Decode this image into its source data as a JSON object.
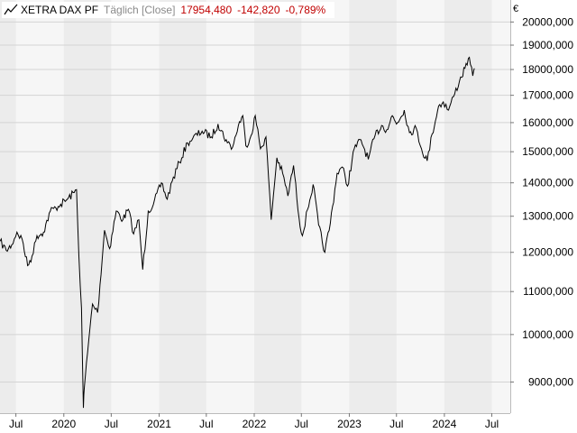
{
  "header": {
    "icon": "line-chart-icon",
    "name": "XETRA DAX PF",
    "frequency": "Täglich [Close]",
    "last": "17954,480",
    "change": "-142,820",
    "change_pct": "-0,789%",
    "negative_color": "#c00000"
  },
  "chart_data": {
    "type": "line",
    "title": "XETRA DAX PF",
    "xlabel": "",
    "ylabel": "",
    "y_unit": "€",
    "y_scale": "log",
    "ylim": [
      8400,
      21000
    ],
    "xlim": [
      "2019-05-01",
      "2024-09-10"
    ],
    "y_ticks": [
      9000,
      10000,
      11000,
      12000,
      13000,
      14000,
      15000,
      16000,
      17000,
      18000,
      19000,
      20000
    ],
    "y_tick_labels": [
      "9000,000",
      "10000,000",
      "11000,000",
      "12000,000",
      "13000,000",
      "14000,000",
      "15000,000",
      "16000,000",
      "17000,000",
      "18000,000",
      "19000,000",
      "20000,000"
    ],
    "x_ticks": [
      {
        "date": "2019-07-01",
        "label": "Jul"
      },
      {
        "date": "2020-01-01",
        "label": "2020"
      },
      {
        "date": "2020-07-01",
        "label": "Jul"
      },
      {
        "date": "2021-01-01",
        "label": "2021"
      },
      {
        "date": "2021-07-01",
        "label": "Jul"
      },
      {
        "date": "2022-01-01",
        "label": "2022"
      },
      {
        "date": "2022-07-01",
        "label": "Jul"
      },
      {
        "date": "2023-01-01",
        "label": "2023"
      },
      {
        "date": "2023-07-01",
        "label": "Jul"
      },
      {
        "date": "2024-01-01",
        "label": "2024"
      },
      {
        "date": "2024-07-01",
        "label": "Jul"
      }
    ],
    "grid": true,
    "legend": "none",
    "line_color": "#000000",
    "series": [
      {
        "values": [
          [
            "2019-05-01",
            12300
          ],
          [
            "2019-05-25",
            12050
          ],
          [
            "2019-06-15",
            12200
          ],
          [
            "2019-07-05",
            12550
          ],
          [
            "2019-07-25",
            12350
          ],
          [
            "2019-08-15",
            11650
          ],
          [
            "2019-09-01",
            11900
          ],
          [
            "2019-09-20",
            12450
          ],
          [
            "2019-10-15",
            12550
          ],
          [
            "2019-11-10",
            13150
          ],
          [
            "2019-12-01",
            13250
          ],
          [
            "2019-12-20",
            13350
          ],
          [
            "2020-01-15",
            13500
          ],
          [
            "2020-02-10",
            13700
          ],
          [
            "2020-02-19",
            13790
          ],
          [
            "2020-02-28",
            11900
          ],
          [
            "2020-03-09",
            10600
          ],
          [
            "2020-03-16",
            8500
          ],
          [
            "2020-03-20",
            8900
          ],
          [
            "2020-04-01",
            9600
          ],
          [
            "2020-04-20",
            10700
          ],
          [
            "2020-05-10",
            10500
          ],
          [
            "2020-06-05",
            12600
          ],
          [
            "2020-06-25",
            12100
          ],
          [
            "2020-07-20",
            13150
          ],
          [
            "2020-08-15",
            12900
          ],
          [
            "2020-09-05",
            13200
          ],
          [
            "2020-09-25",
            12500
          ],
          [
            "2020-10-15",
            12900
          ],
          [
            "2020-10-30",
            11550
          ],
          [
            "2020-11-20",
            13150
          ],
          [
            "2020-12-10",
            13350
          ],
          [
            "2021-01-10",
            14000
          ],
          [
            "2021-02-01",
            13500
          ],
          [
            "2021-02-20",
            14050
          ],
          [
            "2021-03-20",
            14650
          ],
          [
            "2021-04-20",
            15300
          ],
          [
            "2021-05-10",
            15450
          ],
          [
            "2021-06-15",
            15700
          ],
          [
            "2021-07-20",
            15500
          ],
          [
            "2021-08-15",
            15950
          ],
          [
            "2021-09-20",
            15300
          ],
          [
            "2021-10-10",
            15150
          ],
          [
            "2021-11-01",
            15900
          ],
          [
            "2021-11-18",
            16250
          ],
          [
            "2021-11-30",
            15200
          ],
          [
            "2021-12-20",
            15550
          ],
          [
            "2022-01-05",
            16250
          ],
          [
            "2022-01-25",
            15100
          ],
          [
            "2022-02-15",
            15500
          ],
          [
            "2022-03-07",
            12900
          ],
          [
            "2022-03-29",
            14800
          ],
          [
            "2022-04-20",
            14300
          ],
          [
            "2022-05-10",
            13600
          ],
          [
            "2022-06-01",
            14550
          ],
          [
            "2022-06-22",
            12950
          ],
          [
            "2022-07-05",
            12450
          ],
          [
            "2022-07-25",
            13200
          ],
          [
            "2022-08-15",
            13950
          ],
          [
            "2022-09-05",
            12750
          ],
          [
            "2022-09-29",
            12000
          ],
          [
            "2022-10-20",
            12800
          ],
          [
            "2022-11-15",
            14300
          ],
          [
            "2022-12-05",
            14500
          ],
          [
            "2022-12-25",
            13900
          ],
          [
            "2023-01-20",
            15100
          ],
          [
            "2023-02-15",
            15400
          ],
          [
            "2023-03-15",
            14750
          ],
          [
            "2023-04-10",
            15550
          ],
          [
            "2023-05-05",
            15900
          ],
          [
            "2023-05-25",
            15750
          ],
          [
            "2023-06-15",
            16250
          ],
          [
            "2023-07-01",
            15950
          ],
          [
            "2023-07-31",
            16450
          ],
          [
            "2023-08-20",
            15650
          ],
          [
            "2023-09-15",
            15800
          ],
          [
            "2023-10-05",
            15100
          ],
          [
            "2023-10-27",
            14700
          ],
          [
            "2023-11-15",
            15600
          ],
          [
            "2023-12-10",
            16600
          ],
          [
            "2023-12-28",
            16750
          ],
          [
            "2024-01-17",
            16450
          ],
          [
            "2024-02-05",
            16950
          ],
          [
            "2024-02-28",
            17550
          ],
          [
            "2024-03-20",
            18050
          ],
          [
            "2024-04-02",
            18450
          ],
          [
            "2024-04-10",
            18200
          ],
          [
            "2024-04-19",
            17750
          ],
          [
            "2024-04-25",
            18050
          ]
        ]
      }
    ]
  }
}
